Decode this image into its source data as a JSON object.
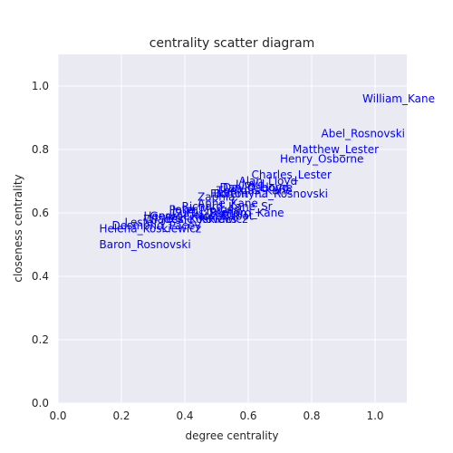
{
  "chart_data": {
    "type": "scatter",
    "title": "centrality scatter diagram",
    "xlabel": "degree centrality",
    "ylabel": "closeness centrality",
    "xlim": [
      0.0,
      1.1
    ],
    "ylim": [
      0.0,
      1.1
    ],
    "xticks": [
      "0.0",
      "0.2",
      "0.4",
      "0.6",
      "0.8",
      "1.0"
    ],
    "yticks": [
      "0.0",
      "0.2",
      "0.4",
      "0.6",
      "0.8",
      "1.0"
    ],
    "grid": true,
    "background_color": "#eaeaf2",
    "grid_color": "#ffffff",
    "label_color": "#0000ff",
    "points": [
      {
        "label": "William_Kane",
        "x": 0.96,
        "y": 0.96
      },
      {
        "label": "Abel_Rosnovski",
        "x": 0.83,
        "y": 0.85
      },
      {
        "label": "Matthew_Lester",
        "x": 0.74,
        "y": 0.8
      },
      {
        "label": "Henry_Osborne",
        "x": 0.7,
        "y": 0.77
      },
      {
        "label": "Charles_Lester",
        "x": 0.61,
        "y": 0.72
      },
      {
        "label": "Alan_Lloyd",
        "x": 0.57,
        "y": 0.7
      },
      {
        "label": "Lloyd",
        "x": 0.56,
        "y": 0.69
      },
      {
        "label": "David_Lloyd",
        "x": 0.52,
        "y": 0.68
      },
      {
        "label": "Dan_Osborne",
        "x": 0.51,
        "y": 0.68
      },
      {
        "label": "Thomas_Kane",
        "x": 0.5,
        "y": 0.67
      },
      {
        "label": "Bolton",
        "x": 0.49,
        "y": 0.66
      },
      {
        "label": "Florentyna_Rosnovski",
        "x": 0.48,
        "y": 0.66
      },
      {
        "label": "Zaphia",
        "x": 0.44,
        "y": 0.65
      },
      {
        "label": "Anne_Kane",
        "x": 0.44,
        "y": 0.63
      },
      {
        "label": "Richard_Kane_Sr",
        "x": 0.39,
        "y": 0.62
      },
      {
        "label": "Peter",
        "x": 0.35,
        "y": 0.61
      },
      {
        "label": "Jake_Morgan",
        "x": 0.36,
        "y": 0.61
      },
      {
        "label": "Curtis_Fenton",
        "x": 0.36,
        "y": 0.6
      },
      {
        "label": "Richard_Kane",
        "x": 0.48,
        "y": 0.6
      },
      {
        "label": "Henry",
        "x": 0.27,
        "y": 0.59
      },
      {
        "label": "George_Novak",
        "x": 0.29,
        "y": 0.59
      },
      {
        "label": "Kate_Cabot",
        "x": 0.42,
        "y": 0.59
      },
      {
        "label": "Jessie_Kovacs",
        "x": 0.33,
        "y": 0.58
      },
      {
        "label": "Wladek_Koskiewicz",
        "x": 0.27,
        "y": 0.58
      },
      {
        "label": "Lester",
        "x": 0.21,
        "y": 0.57
      },
      {
        "label": "Desmond_Pacey",
        "x": 0.17,
        "y": 0.56
      },
      {
        "label": "Helena_Koskiewicz",
        "x": 0.13,
        "y": 0.55
      },
      {
        "label": "Baron_Rosnovski",
        "x": 0.13,
        "y": 0.5
      }
    ]
  }
}
